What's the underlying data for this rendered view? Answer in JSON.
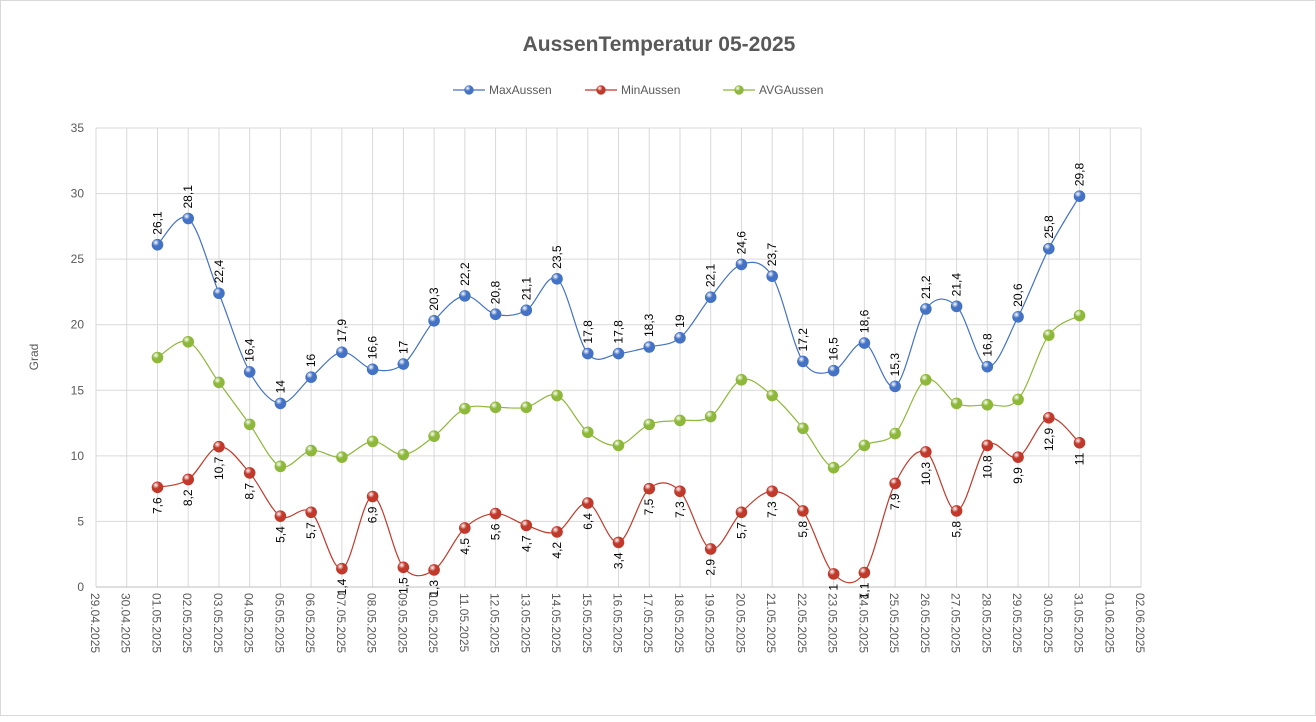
{
  "chart_data": {
    "type": "line",
    "title": "AussenTemperatur 05-2025",
    "xlabel": "",
    "ylabel": "Grad",
    "ylim": [
      0,
      35
    ],
    "yticks": [
      0,
      5,
      10,
      15,
      20,
      25,
      30,
      35
    ],
    "grid": true,
    "smooth": true,
    "legend": "top",
    "categories": [
      "29.04.2025",
      "30.04.2025",
      "01.05.2025",
      "02.05.2025",
      "03.05.2025",
      "04.05.2025",
      "05.05.2025",
      "06.05.2025",
      "07.05.2025",
      "08.05.2025",
      "09.05.2025",
      "10.05.2025",
      "11.05.2025",
      "12.05.2025",
      "13.05.2025",
      "14.05.2025",
      "15.05.2025",
      "16.05.2025",
      "17.05.2025",
      "18.05.2025",
      "19.05.2025",
      "20.05.2025",
      "21.05.2025",
      "22.05.2025",
      "23.05.2025",
      "24.05.2025",
      "25.05.2025",
      "26.05.2025",
      "27.05.2025",
      "28.05.2025",
      "29.05.2025",
      "30.05.2025",
      "31.05.2025",
      "01.06.2025",
      "02.06.2025"
    ],
    "series": [
      {
        "name": "MaxAussen",
        "color": "#4472c4",
        "labels": "above",
        "values": [
          null,
          null,
          26.1,
          28.1,
          22.4,
          16.4,
          14,
          16,
          17.9,
          16.6,
          17,
          20.3,
          22.2,
          20.8,
          21.1,
          23.5,
          17.8,
          17.8,
          18.3,
          19,
          22.1,
          24.6,
          23.7,
          17.2,
          16.5,
          18.6,
          15.3,
          21.2,
          21.4,
          16.8,
          20.6,
          25.8,
          29.8,
          null,
          null
        ]
      },
      {
        "name": "MinAussen",
        "color": "#c0392b",
        "labels": "below",
        "values": [
          null,
          null,
          7.6,
          8.2,
          10.7,
          8.7,
          5.4,
          5.7,
          1.4,
          6.9,
          1.5,
          1.3,
          4.5,
          5.6,
          4.7,
          4.2,
          6.4,
          3.4,
          7.5,
          7.3,
          2.9,
          5.7,
          7.3,
          5.8,
          1,
          1.1,
          7.9,
          10.3,
          5.8,
          10.8,
          9.9,
          12.9,
          11,
          null,
          null
        ]
      },
      {
        "name": "AVGAussen",
        "color": "#8db83a",
        "labels": "none",
        "values": [
          null,
          null,
          17.5,
          18.7,
          15.6,
          12.4,
          9.2,
          10.4,
          9.9,
          11.1,
          10.1,
          11.5,
          13.6,
          13.7,
          13.7,
          14.6,
          11.8,
          10.8,
          12.4,
          12.7,
          13.0,
          15.8,
          14.6,
          12.1,
          9.1,
          10.8,
          11.7,
          15.8,
          14.0,
          13.9,
          14.3,
          19.2,
          20.7,
          null,
          null
        ]
      }
    ]
  }
}
